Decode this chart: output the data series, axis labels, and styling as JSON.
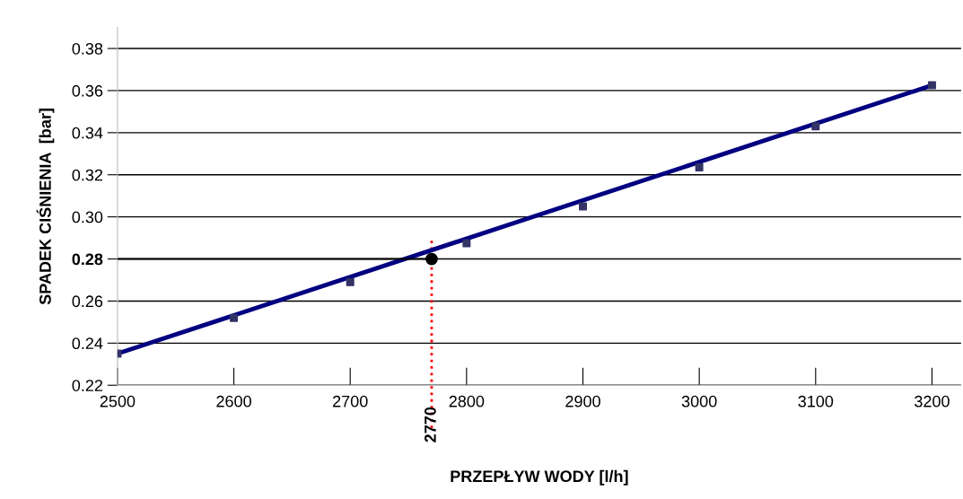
{
  "chart_data": {
    "type": "line",
    "xlabel": "PRZEPŁYW WODY [l/h]",
    "ylabel": "SPADEK CIŚNIENIA  [bar]",
    "x": [
      2500,
      2600,
      2700,
      2800,
      2900,
      3000,
      3100,
      3200
    ],
    "series": [
      {
        "color": "#000080",
        "x": [
          2500,
          3200
        ],
        "values": [
          0.235,
          0.3625
        ],
        "marker": "none"
      },
      {
        "type": "scatter",
        "color": "#333366",
        "values": [
          0.235,
          0.252,
          0.269,
          0.2875,
          0.305,
          0.3235,
          0.343,
          0.3625
        ],
        "marker": "square"
      },
      {
        "color": "#000000",
        "x": [
          2500,
          2770
        ],
        "values": [
          0.28,
          0.28
        ],
        "marker": "none"
      },
      {
        "type": "scatter",
        "color": "#000000",
        "x": [
          2770
        ],
        "values": [
          0.28
        ],
        "marker": "circle"
      }
    ],
    "ref_lines": [
      {
        "axis": "x",
        "value": 2770,
        "label": "2770",
        "color": "#ff0000",
        "line_style": "dotted"
      }
    ],
    "xlim": [
      2500,
      3225
    ],
    "ylim": [
      0.22,
      0.39
    ],
    "xticks": [
      2500,
      2600,
      2700,
      2800,
      2900,
      3000,
      3100,
      3200
    ],
    "yticks": [
      {
        "value": 0.22,
        "label": "0.22"
      },
      {
        "value": 0.24,
        "label": "0.24"
      },
      {
        "value": 0.26,
        "label": "0.26"
      },
      {
        "value": 0.28,
        "label": "0.28"
      },
      {
        "value": 0.3,
        "label": "0.30"
      },
      {
        "value": 0.32,
        "label": "0.32"
      },
      {
        "value": 0.34,
        "label": "0.34"
      },
      {
        "value": 0.36,
        "label": "0.36"
      },
      {
        "value": 0.38,
        "label": "0.38"
      }
    ],
    "grid": "y",
    "legend": false
  }
}
